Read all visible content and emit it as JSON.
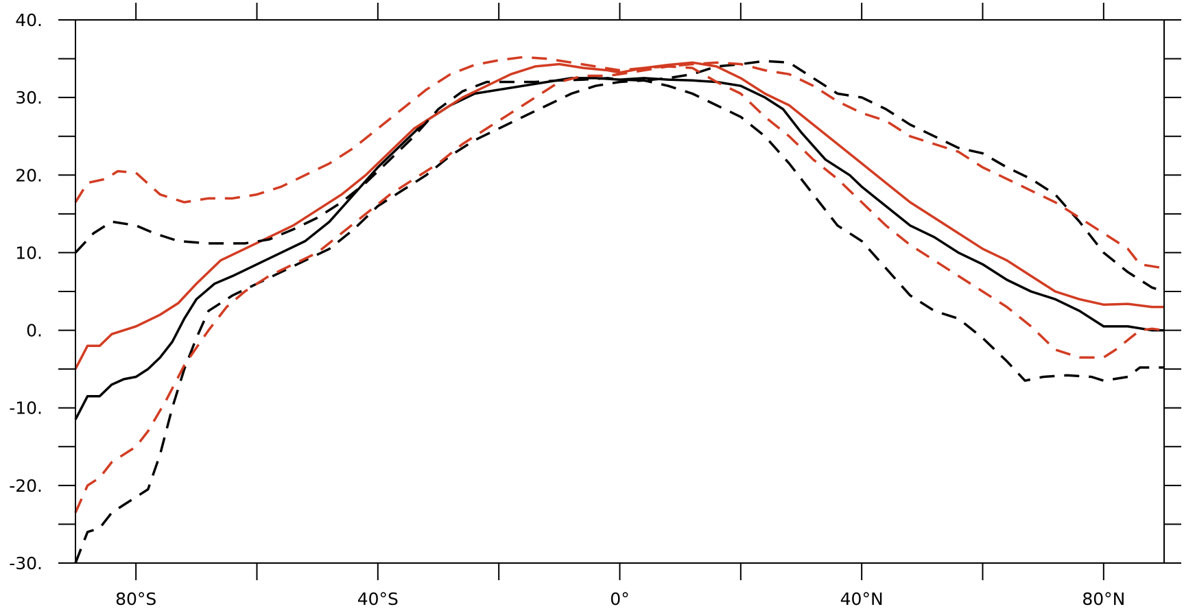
{
  "chart_data": {
    "type": "line",
    "title": "",
    "xlabel": "",
    "ylabel": "",
    "xlim": [
      -90,
      90
    ],
    "ylim": [
      -30,
      40
    ],
    "x_ticks": [
      {
        "value": -80,
        "label": "80°S"
      },
      {
        "value": -40,
        "label": "40°S"
      },
      {
        "value": 0,
        "label": "0°"
      },
      {
        "value": 40,
        "label": "40°N"
      },
      {
        "value": 80,
        "label": "80°N"
      }
    ],
    "y_ticks": [
      {
        "value": 40,
        "label": "40."
      },
      {
        "value": 30,
        "label": "30."
      },
      {
        "value": 20,
        "label": "20."
      },
      {
        "value": 10,
        "label": "10."
      },
      {
        "value": 0,
        "label": "0."
      },
      {
        "value": -10,
        "label": "-10."
      },
      {
        "value": -20,
        "label": "-20."
      },
      {
        "value": -30,
        "label": "-30."
      }
    ],
    "x_minor_ticks": [
      -60,
      -20,
      20,
      60
    ],
    "y_minor_ticks": [
      35,
      25,
      15,
      5,
      -5,
      -15,
      -25
    ],
    "grid": false,
    "legend": "none",
    "series": [
      {
        "color": "#000000",
        "dash": "solid",
        "points": [
          [
            -90,
            -11.5
          ],
          [
            -88,
            -8.5
          ],
          [
            -86,
            -8.5
          ],
          [
            -84,
            -7
          ],
          [
            -82,
            -6.3
          ],
          [
            -80,
            -6
          ],
          [
            -78,
            -5
          ],
          [
            -76,
            -3.5
          ],
          [
            -74,
            -1.5
          ],
          [
            -72,
            1.5
          ],
          [
            -70,
            4
          ],
          [
            -67,
            6
          ],
          [
            -64,
            7
          ],
          [
            -60,
            8.5
          ],
          [
            -56,
            10
          ],
          [
            -52,
            11.5
          ],
          [
            -48,
            14
          ],
          [
            -44,
            17.5
          ],
          [
            -40,
            21
          ],
          [
            -36,
            24
          ],
          [
            -32,
            27
          ],
          [
            -28,
            29
          ],
          [
            -24,
            30.5
          ],
          [
            -20,
            31
          ],
          [
            -16,
            31.5
          ],
          [
            -12,
            32
          ],
          [
            -8,
            32.5
          ],
          [
            -4,
            32.5
          ],
          [
            0,
            32.3
          ],
          [
            4,
            32.5
          ],
          [
            8,
            32.3
          ],
          [
            12,
            32.2
          ],
          [
            16,
            32
          ],
          [
            20,
            31.5
          ],
          [
            24,
            30
          ],
          [
            27,
            28.5
          ],
          [
            30,
            25.5
          ],
          [
            34,
            22
          ],
          [
            38,
            20
          ],
          [
            40,
            18.5
          ],
          [
            44,
            16
          ],
          [
            48,
            13.5
          ],
          [
            52,
            12
          ],
          [
            56,
            10
          ],
          [
            60,
            8.5
          ],
          [
            64,
            6.5
          ],
          [
            68,
            5
          ],
          [
            72,
            4
          ],
          [
            76,
            2.5
          ],
          [
            80,
            0.5
          ],
          [
            84,
            0.5
          ],
          [
            88,
            0
          ],
          [
            90,
            0
          ]
        ]
      },
      {
        "color": "#d23c22",
        "dash": "solid",
        "points": [
          [
            -90,
            -5
          ],
          [
            -88,
            -2
          ],
          [
            -86,
            -2
          ],
          [
            -84,
            -0.5
          ],
          [
            -82,
            0
          ],
          [
            -80,
            0.5
          ],
          [
            -76,
            2
          ],
          [
            -73,
            3.5
          ],
          [
            -70,
            6
          ],
          [
            -66,
            9
          ],
          [
            -62,
            10.5
          ],
          [
            -58,
            12
          ],
          [
            -54,
            13.5
          ],
          [
            -50,
            15.5
          ],
          [
            -46,
            17.5
          ],
          [
            -42,
            20
          ],
          [
            -38,
            23
          ],
          [
            -34,
            26
          ],
          [
            -30,
            28
          ],
          [
            -26,
            30
          ],
          [
            -22,
            31.5
          ],
          [
            -18,
            33
          ],
          [
            -14,
            34
          ],
          [
            -10,
            34.3
          ],
          [
            -6,
            33.8
          ],
          [
            -2,
            33.5
          ],
          [
            0,
            33.2
          ],
          [
            4,
            33.8
          ],
          [
            8,
            34.2
          ],
          [
            12,
            34.5
          ],
          [
            16,
            34
          ],
          [
            20,
            32.5
          ],
          [
            24,
            30.5
          ],
          [
            28,
            29
          ],
          [
            32,
            26.5
          ],
          [
            36,
            24
          ],
          [
            40,
            21.5
          ],
          [
            44,
            19
          ],
          [
            48,
            16.5
          ],
          [
            52,
            14.5
          ],
          [
            56,
            12.5
          ],
          [
            60,
            10.5
          ],
          [
            64,
            9
          ],
          [
            68,
            7
          ],
          [
            72,
            5
          ],
          [
            76,
            4
          ],
          [
            80,
            3.3
          ],
          [
            84,
            3.4
          ],
          [
            88,
            3
          ],
          [
            90,
            3
          ]
        ]
      },
      {
        "color": "#000000",
        "dash": "dashed",
        "points": [
          [
            -90,
            10
          ],
          [
            -87,
            12.5
          ],
          [
            -84,
            14
          ],
          [
            -80,
            13.5
          ],
          [
            -77,
            12.5
          ],
          [
            -73,
            11.5
          ],
          [
            -68,
            11.2
          ],
          [
            -62,
            11.2
          ],
          [
            -58,
            11.7
          ],
          [
            -54,
            13
          ],
          [
            -50,
            14.5
          ],
          [
            -46,
            16.5
          ],
          [
            -42,
            19
          ],
          [
            -38,
            22
          ],
          [
            -34,
            25
          ],
          [
            -30,
            28.5
          ],
          [
            -26,
            30.8
          ],
          [
            -22,
            32
          ],
          [
            -18,
            32
          ],
          [
            -14,
            32
          ],
          [
            -10,
            32.2
          ],
          [
            -6,
            32.3
          ],
          [
            -2,
            32.5
          ],
          [
            0,
            32.3
          ],
          [
            4,
            32.2
          ],
          [
            8,
            32.5
          ],
          [
            12,
            33
          ],
          [
            16,
            34
          ],
          [
            20,
            34.3
          ],
          [
            24,
            34.7
          ],
          [
            28,
            34.5
          ],
          [
            32,
            32.5
          ],
          [
            36,
            30.5
          ],
          [
            40,
            30
          ],
          [
            44,
            28.5
          ],
          [
            48,
            26.5
          ],
          [
            52,
            25
          ],
          [
            56,
            23.5
          ],
          [
            60,
            22.8
          ],
          [
            64,
            21
          ],
          [
            68,
            19.5
          ],
          [
            72,
            17.5
          ],
          [
            76,
            14
          ],
          [
            80,
            10
          ],
          [
            84,
            7.5
          ],
          [
            88,
            5.5
          ],
          [
            90,
            5
          ]
        ]
      },
      {
        "color": "#000000",
        "dash": "dashed",
        "points": [
          [
            -90,
            -30
          ],
          [
            -88,
            -26
          ],
          [
            -86,
            -25.5
          ],
          [
            -84,
            -23.5
          ],
          [
            -82,
            -22.5
          ],
          [
            -78,
            -20.5
          ],
          [
            -76,
            -16
          ],
          [
            -74,
            -10
          ],
          [
            -72,
            -5
          ],
          [
            -70,
            -1
          ],
          [
            -68,
            2.5
          ],
          [
            -64,
            4.5
          ],
          [
            -60,
            6
          ],
          [
            -56,
            7.5
          ],
          [
            -52,
            9
          ],
          [
            -48,
            10.5
          ],
          [
            -44,
            13
          ],
          [
            -40,
            16
          ],
          [
            -36,
            18
          ],
          [
            -32,
            20
          ],
          [
            -28,
            22.5
          ],
          [
            -24,
            24.5
          ],
          [
            -20,
            26
          ],
          [
            -16,
            27.5
          ],
          [
            -12,
            29
          ],
          [
            -8,
            30.5
          ],
          [
            -4,
            31.5
          ],
          [
            0,
            32
          ],
          [
            4,
            32.2
          ],
          [
            8,
            31.5
          ],
          [
            12,
            30.5
          ],
          [
            16,
            29
          ],
          [
            20,
            27.5
          ],
          [
            24,
            25
          ],
          [
            28,
            21.5
          ],
          [
            32,
            17.5
          ],
          [
            36,
            13.5
          ],
          [
            40,
            11.5
          ],
          [
            44,
            8
          ],
          [
            48,
            4.5
          ],
          [
            52,
            2.5
          ],
          [
            56,
            1.5
          ],
          [
            60,
            -1
          ],
          [
            64,
            -4
          ],
          [
            67,
            -6.5
          ],
          [
            70,
            -6
          ],
          [
            74,
            -5.8
          ],
          [
            78,
            -6
          ],
          [
            80,
            -6.5
          ],
          [
            84,
            -6
          ],
          [
            86,
            -4.8
          ],
          [
            90,
            -4.8
          ]
        ]
      },
      {
        "color": "#d23c22",
        "dash": "dashed",
        "points": [
          [
            -90,
            16.5
          ],
          [
            -88,
            19
          ],
          [
            -85,
            19.5
          ],
          [
            -83,
            20.5
          ],
          [
            -80,
            20.3
          ],
          [
            -76,
            17.5
          ],
          [
            -72,
            16.5
          ],
          [
            -68,
            17
          ],
          [
            -64,
            17
          ],
          [
            -60,
            17.5
          ],
          [
            -56,
            18.5
          ],
          [
            -52,
            20
          ],
          [
            -48,
            21.5
          ],
          [
            -44,
            23.5
          ],
          [
            -40,
            26
          ],
          [
            -36,
            28.5
          ],
          [
            -32,
            31
          ],
          [
            -28,
            33
          ],
          [
            -24,
            34.2
          ],
          [
            -20,
            34.8
          ],
          [
            -16,
            35.2
          ],
          [
            -12,
            35
          ],
          [
            -8,
            34.5
          ],
          [
            -4,
            34
          ],
          [
            0,
            33.5
          ],
          [
            4,
            33.8
          ],
          [
            8,
            34
          ],
          [
            12,
            34.3
          ],
          [
            16,
            34.5
          ],
          [
            20,
            34.3
          ],
          [
            24,
            33.5
          ],
          [
            28,
            33
          ],
          [
            32,
            31.5
          ],
          [
            36,
            29.5
          ],
          [
            40,
            28
          ],
          [
            44,
            27
          ],
          [
            48,
            25
          ],
          [
            52,
            24
          ],
          [
            56,
            23
          ],
          [
            60,
            21
          ],
          [
            64,
            19.5
          ],
          [
            68,
            18
          ],
          [
            72,
            16.5
          ],
          [
            76,
            14.5
          ],
          [
            80,
            12.5
          ],
          [
            84,
            10.5
          ],
          [
            86,
            8.5
          ],
          [
            90,
            8
          ]
        ]
      },
      {
        "color": "#d23c22",
        "dash": "dashed",
        "points": [
          [
            -90,
            -23.5
          ],
          [
            -88,
            -20
          ],
          [
            -86,
            -19
          ],
          [
            -84,
            -17
          ],
          [
            -80,
            -15
          ],
          [
            -78,
            -13
          ],
          [
            -75,
            -9
          ],
          [
            -72,
            -4.5
          ],
          [
            -68,
            0
          ],
          [
            -65,
            3
          ],
          [
            -62,
            5
          ],
          [
            -58,
            7
          ],
          [
            -54,
            8.5
          ],
          [
            -50,
            10
          ],
          [
            -46,
            12.5
          ],
          [
            -42,
            15
          ],
          [
            -38,
            17.5
          ],
          [
            -34,
            19.5
          ],
          [
            -30,
            21.5
          ],
          [
            -26,
            24
          ],
          [
            -22,
            26
          ],
          [
            -18,
            28
          ],
          [
            -14,
            30
          ],
          [
            -10,
            32
          ],
          [
            -6,
            32.8
          ],
          [
            -2,
            32.8
          ],
          [
            0,
            33
          ],
          [
            4,
            33.5
          ],
          [
            8,
            34
          ],
          [
            12,
            33.8
          ],
          [
            16,
            32
          ],
          [
            20,
            30.5
          ],
          [
            24,
            27.5
          ],
          [
            28,
            25
          ],
          [
            32,
            22
          ],
          [
            36,
            19.5
          ],
          [
            40,
            16.5
          ],
          [
            44,
            13.5
          ],
          [
            48,
            11
          ],
          [
            52,
            9
          ],
          [
            56,
            7
          ],
          [
            60,
            5
          ],
          [
            64,
            3
          ],
          [
            68,
            0.5
          ],
          [
            72,
            -2.5
          ],
          [
            76,
            -3.5
          ],
          [
            80,
            -3.5
          ],
          [
            82,
            -2.5
          ],
          [
            86,
            0
          ],
          [
            88,
            0.2
          ],
          [
            90,
            0
          ]
        ]
      }
    ]
  }
}
